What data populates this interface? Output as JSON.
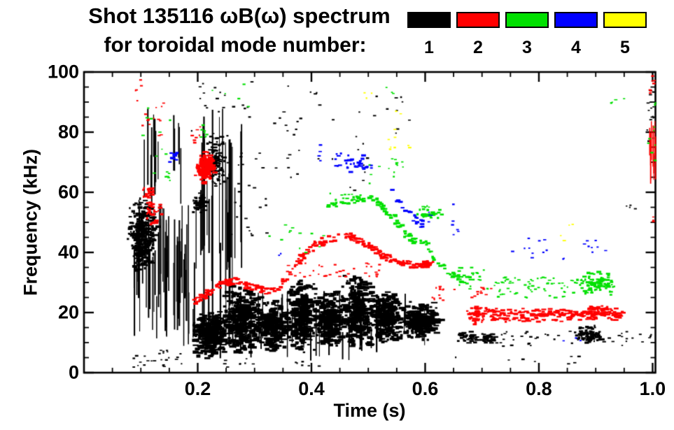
{
  "chart_data": {
    "type": "scatter",
    "subtype": "mode-spectrogram-scatter",
    "title_line1": "Shot 135116 ωB(ω) spectrum",
    "title_line2": "for toroidal mode number:",
    "xlabel": "Time (s)",
    "ylabel": "Frequency (kHz)",
    "xlim": [
      0,
      1.005
    ],
    "ylim": [
      0,
      100
    ],
    "xticks": [
      {
        "v": 0.2,
        "label": "0.2"
      },
      {
        "v": 0.4,
        "label": "0.4"
      },
      {
        "v": 0.6,
        "label": "0.6"
      },
      {
        "v": 0.8,
        "label": "0.8"
      },
      {
        "v": 1.0,
        "label": "1.0"
      }
    ],
    "yticks": [
      {
        "v": 0,
        "label": "0"
      },
      {
        "v": 20,
        "label": "20"
      },
      {
        "v": 40,
        "label": "40"
      },
      {
        "v": 60,
        "label": "60"
      },
      {
        "v": 80,
        "label": "80"
      },
      {
        "v": 100,
        "label": "100"
      }
    ],
    "minor_x_step": 0.05,
    "minor_y_step": 5,
    "grid": false,
    "legend_position": "top-right",
    "legend": {
      "items": [
        {
          "label": "1",
          "color": "#000000"
        },
        {
          "label": "2",
          "color": "#ff0000"
        },
        {
          "label": "3",
          "color": "#00e000"
        },
        {
          "label": "4",
          "color": "#0000ff"
        },
        {
          "label": "5",
          "color": "#ffff00"
        }
      ]
    },
    "mode_colors": {
      "1": "#000000",
      "2": "#ff0000",
      "3": "#00e000",
      "4": "#0000ff",
      "5": "#ffff00"
    },
    "seed": 7,
    "features": [
      {
        "mode": 1,
        "style": "blob",
        "t": [
          0.073,
          0.127
        ],
        "f": [
          34,
          59
        ],
        "n": 320,
        "dw": [
          2,
          8
        ],
        "dh": [
          2,
          4
        ]
      },
      {
        "mode": 1,
        "style": "vspikes",
        "t": [
          0.085,
          0.185
        ],
        "f": [
          8,
          58
        ],
        "n": 50
      },
      {
        "mode": 1,
        "style": "vspikes",
        "t": [
          0.1,
          0.175
        ],
        "f": [
          55,
          90
        ],
        "n": 14
      },
      {
        "mode": 1,
        "style": "specks",
        "t": [
          0.085,
          0.175
        ],
        "f": [
          2,
          8
        ],
        "n": 26
      },
      {
        "mode": 1,
        "style": "vspikes",
        "t": [
          0.19,
          0.28
        ],
        "f": [
          8,
          88
        ],
        "n": 26
      },
      {
        "mode": 1,
        "style": "blob",
        "t": [
          0.213,
          0.247
        ],
        "f": [
          61,
          80
        ],
        "n": 100
      },
      {
        "mode": 1,
        "style": "blob",
        "t": [
          0.188,
          0.215
        ],
        "f": [
          53,
          60
        ],
        "n": 50
      },
      {
        "mode": 1,
        "style": "specks",
        "t": [
          0.185,
          0.3
        ],
        "f": [
          78,
          98
        ],
        "n": 22
      },
      {
        "mode": 1,
        "style": "specks",
        "t": [
          0.25,
          0.32
        ],
        "f": [
          45,
          75
        ],
        "n": 26
      },
      {
        "mode": 1,
        "style": "blob",
        "t": [
          0.188,
          0.25
        ],
        "f": [
          5,
          22
        ],
        "n": 300,
        "dw": [
          3,
          10
        ],
        "dh": [
          2,
          5
        ]
      },
      {
        "mode": 1,
        "style": "blob",
        "t": [
          0.24,
          0.31
        ],
        "f": [
          6,
          30
        ],
        "n": 320,
        "dw": [
          3,
          10
        ],
        "dh": [
          2,
          5
        ]
      },
      {
        "mode": 1,
        "style": "blob",
        "t": [
          0.3,
          0.36
        ],
        "f": [
          7,
          25
        ],
        "n": 230,
        "dw": [
          3,
          10
        ],
        "dh": [
          2,
          5
        ]
      },
      {
        "mode": 1,
        "style": "blob",
        "t": [
          0.355,
          0.405
        ],
        "f": [
          7,
          32
        ],
        "n": 270,
        "dw": [
          3,
          10
        ],
        "dh": [
          2,
          5
        ]
      },
      {
        "mode": 1,
        "style": "blob",
        "t": [
          0.4,
          0.455
        ],
        "f": [
          8,
          28
        ],
        "n": 290,
        "dw": [
          3,
          10
        ],
        "dh": [
          2,
          5
        ]
      },
      {
        "mode": 1,
        "style": "blob",
        "t": [
          0.45,
          0.505
        ],
        "f": [
          8,
          33
        ],
        "n": 310,
        "dw": [
          3,
          10
        ],
        "dh": [
          2,
          5
        ]
      },
      {
        "mode": 1,
        "style": "blob",
        "t": [
          0.5,
          0.555
        ],
        "f": [
          10,
          28
        ],
        "n": 260,
        "dw": [
          3,
          10
        ],
        "dh": [
          2,
          5
        ]
      },
      {
        "mode": 1,
        "style": "blob",
        "t": [
          0.55,
          0.625
        ],
        "f": [
          11,
          24
        ],
        "n": 240,
        "dw": [
          3,
          10
        ],
        "dh": [
          2,
          5
        ]
      },
      {
        "mode": 1,
        "style": "vspikes",
        "t": [
          0.19,
          0.62
        ],
        "f": [
          4,
          28
        ],
        "n": 44
      },
      {
        "mode": 1,
        "style": "specks",
        "t": [
          0.33,
          0.5
        ],
        "f": [
          60,
          98
        ],
        "n": 34
      },
      {
        "mode": 1,
        "style": "specks",
        "t": [
          0.5,
          0.6
        ],
        "f": [
          75,
          96
        ],
        "n": 10
      },
      {
        "mode": 1,
        "style": "band",
        "t": [
          0.655,
          0.72
        ],
        "f": [
          10,
          14
        ],
        "n": 60
      },
      {
        "mode": 1,
        "style": "specks",
        "t": [
          0.72,
          0.86
        ],
        "f": [
          9,
          14
        ],
        "n": 26
      },
      {
        "mode": 1,
        "style": "blob",
        "t": [
          0.858,
          0.915
        ],
        "f": [
          10,
          16
        ],
        "n": 90
      },
      {
        "mode": 1,
        "style": "specks",
        "t": [
          0.92,
          0.965
        ],
        "f": [
          9,
          14
        ],
        "n": 10
      },
      {
        "mode": 1,
        "style": "specks",
        "t": [
          0.63,
          0.87
        ],
        "f": [
          3,
          6
        ],
        "n": 8
      },
      {
        "mode": 1,
        "style": "specks",
        "t": [
          0.985,
          1.002
        ],
        "f": [
          76,
          95
        ],
        "n": 14
      },
      {
        "mode": 1,
        "style": "specks",
        "t": [
          0.975,
          1.0
        ],
        "f": [
          10,
          14
        ],
        "n": 5
      },
      {
        "mode": 1,
        "style": "specks",
        "t": [
          0.95,
          0.97
        ],
        "f": [
          54,
          57
        ],
        "n": 4
      },
      {
        "mode": 1,
        "style": "specks",
        "t": [
          0.24,
          0.3
        ],
        "f": [
          2,
          5
        ],
        "n": 8
      },
      {
        "mode": 1,
        "style": "specks",
        "t": [
          0.37,
          0.42
        ],
        "f": [
          2,
          4
        ],
        "n": 6
      },
      {
        "mode": 2,
        "style": "specks",
        "t": [
          0.09,
          0.14
        ],
        "f": [
          78,
          91
        ],
        "n": 14
      },
      {
        "mode": 2,
        "style": "specks",
        "t": [
          0.088,
          0.1
        ],
        "f": [
          94,
          98
        ],
        "n": 4
      },
      {
        "mode": 2,
        "style": "blob",
        "t": [
          0.098,
          0.135
        ],
        "f": [
          49,
          58
        ],
        "n": 30
      },
      {
        "mode": 2,
        "style": "blob",
        "t": [
          0.1,
          0.125
        ],
        "f": [
          58,
          63
        ],
        "n": 24
      },
      {
        "mode": 2,
        "style": "blob",
        "t": [
          0.192,
          0.227
        ],
        "f": [
          63,
          74
        ],
        "n": 150,
        "dw": [
          3,
          9
        ],
        "dh": [
          2,
          4
        ]
      },
      {
        "mode": 2,
        "style": "specks",
        "t": [
          0.185,
          0.205
        ],
        "f": [
          76,
          82
        ],
        "n": 8
      },
      {
        "mode": 2,
        "style": "trace",
        "points": [
          [
            0.193,
            24
          ],
          [
            0.215,
            27
          ],
          [
            0.24,
            30
          ],
          [
            0.265,
            31
          ],
          [
            0.29,
            29
          ],
          [
            0.315,
            27
          ],
          [
            0.34,
            29
          ],
          [
            0.365,
            35
          ],
          [
            0.385,
            40
          ],
          [
            0.405,
            43
          ],
          [
            0.43,
            45
          ],
          [
            0.46,
            46
          ],
          [
            0.485,
            44
          ],
          [
            0.505,
            42
          ],
          [
            0.525,
            39
          ],
          [
            0.55,
            37
          ],
          [
            0.575,
            36
          ],
          [
            0.6,
            37
          ]
        ],
        "n": 260
      },
      {
        "mode": 2,
        "style": "specks",
        "t": [
          0.35,
          0.52
        ],
        "f": [
          32,
          37
        ],
        "n": 36
      },
      {
        "mode": 2,
        "style": "blob",
        "t": [
          0.585,
          0.615
        ],
        "f": [
          35,
          38
        ],
        "n": 34
      },
      {
        "mode": 2,
        "style": "specks",
        "t": [
          0.61,
          0.715
        ],
        "f": [
          24,
          29
        ],
        "n": 24
      },
      {
        "mode": 2,
        "style": "blob",
        "t": [
          0.665,
          0.715
        ],
        "f": [
          16,
          23
        ],
        "n": 55
      },
      {
        "mode": 2,
        "style": "band",
        "t": [
          0.71,
          0.945
        ],
        "f": [
          17,
          22
        ],
        "n": 200
      },
      {
        "mode": 2,
        "style": "blob",
        "t": [
          0.865,
          0.935
        ],
        "f": [
          19,
          23
        ],
        "n": 60
      },
      {
        "mode": 2,
        "style": "vspikes",
        "t": [
          0.993,
          1.004
        ],
        "f": [
          60,
          85
        ],
        "n": 10
      },
      {
        "mode": 2,
        "style": "specks",
        "t": [
          0.99,
          1.003
        ],
        "f": [
          92,
          99
        ],
        "n": 8
      },
      {
        "mode": 2,
        "style": "specks",
        "t": [
          0.995,
          1.003
        ],
        "f": [
          50,
          53
        ],
        "n": 3
      },
      {
        "mode": 3,
        "style": "specks",
        "t": [
          0.1,
          0.165
        ],
        "f": [
          60,
          96
        ],
        "n": 10
      },
      {
        "mode": 3,
        "style": "specks",
        "t": [
          0.135,
          0.15
        ],
        "f": [
          63,
          67
        ],
        "n": 6
      },
      {
        "mode": 3,
        "style": "specks",
        "t": [
          0.203,
          0.218
        ],
        "f": [
          78,
          83
        ],
        "n": 7
      },
      {
        "mode": 3,
        "style": "specks",
        "t": [
          0.2,
          0.3
        ],
        "f": [
          88,
          97
        ],
        "n": 5
      },
      {
        "mode": 3,
        "style": "specks",
        "t": [
          0.3,
          0.42
        ],
        "f": [
          40,
          50
        ],
        "n": 12
      },
      {
        "mode": 3,
        "style": "trace",
        "points": [
          [
            0.425,
            56
          ],
          [
            0.45,
            57
          ],
          [
            0.475,
            58
          ],
          [
            0.5,
            59
          ],
          [
            0.515,
            57
          ],
          [
            0.53,
            54
          ],
          [
            0.545,
            51
          ],
          [
            0.558,
            48
          ],
          [
            0.57,
            45
          ],
          [
            0.582,
            44
          ]
        ],
        "n": 80
      },
      {
        "mode": 3,
        "style": "blob",
        "t": [
          0.575,
          0.63
        ],
        "f": [
          51,
          55
        ],
        "n": 30
      },
      {
        "mode": 3,
        "style": "trace",
        "points": [
          [
            0.59,
            45
          ],
          [
            0.61,
            40
          ],
          [
            0.63,
            35
          ],
          [
            0.65,
            32
          ],
          [
            0.675,
            31
          ]
        ],
        "n": 40
      },
      {
        "mode": 3,
        "style": "specks",
        "t": [
          0.655,
          0.715
        ],
        "f": [
          27,
          36
        ],
        "n": 22
      },
      {
        "mode": 3,
        "style": "specks",
        "t": [
          0.72,
          0.86
        ],
        "f": [
          25,
          32
        ],
        "n": 70
      },
      {
        "mode": 3,
        "style": "blob",
        "t": [
          0.858,
          0.935
        ],
        "f": [
          26,
          34
        ],
        "n": 90
      },
      {
        "mode": 3,
        "style": "specks",
        "t": [
          0.5,
          0.56
        ],
        "f": [
          63,
          72
        ],
        "n": 14
      },
      {
        "mode": 3,
        "style": "specks",
        "t": [
          0.525,
          0.555
        ],
        "f": [
          92,
          96
        ],
        "n": 3
      },
      {
        "mode": 3,
        "style": "specks",
        "t": [
          0.925,
          0.95
        ],
        "f": [
          88,
          92
        ],
        "n": 4
      },
      {
        "mode": 3,
        "style": "specks",
        "t": [
          0.988,
          1.003
        ],
        "f": [
          70,
          92
        ],
        "n": 10
      },
      {
        "mode": 3,
        "style": "specks",
        "t": [
          0.593,
          0.605
        ],
        "f": [
          52,
          56
        ],
        "n": 4
      },
      {
        "mode": 3,
        "style": "specks",
        "t": [
          0.43,
          0.47
        ],
        "f": [
          56,
          60
        ],
        "n": 8
      },
      {
        "mode": 4,
        "style": "blob",
        "t": [
          0.146,
          0.163
        ],
        "f": [
          70,
          74
        ],
        "n": 10
      },
      {
        "mode": 4,
        "style": "blob",
        "t": [
          0.435,
          0.51
        ],
        "f": [
          67,
          74
        ],
        "n": 36
      },
      {
        "mode": 4,
        "style": "trace",
        "points": [
          [
            0.53,
            62
          ],
          [
            0.545,
            58
          ],
          [
            0.56,
            55
          ],
          [
            0.575,
            52
          ],
          [
            0.59,
            50
          ],
          [
            0.602,
            48
          ]
        ],
        "n": 22
      },
      {
        "mode": 4,
        "style": "specks",
        "t": [
          0.6,
          0.665
        ],
        "f": [
          46,
          57
        ],
        "n": 10
      },
      {
        "mode": 4,
        "style": "specks",
        "t": [
          0.74,
          0.845
        ],
        "f": [
          38,
          45
        ],
        "n": 12
      },
      {
        "mode": 4,
        "style": "specks",
        "t": [
          0.875,
          0.925
        ],
        "f": [
          40,
          45
        ],
        "n": 8
      },
      {
        "mode": 4,
        "style": "specks",
        "t": [
          0.84,
          0.88
        ],
        "f": [
          8,
          12
        ],
        "n": 3
      },
      {
        "mode": 4,
        "style": "specks",
        "t": [
          0.335,
          0.345
        ],
        "f": [
          39,
          41
        ],
        "n": 2
      },
      {
        "mode": 4,
        "style": "specks",
        "t": [
          0.41,
          0.43
        ],
        "f": [
          70,
          77
        ],
        "n": 4
      },
      {
        "mode": 5,
        "style": "specks",
        "t": [
          0.49,
          0.505
        ],
        "f": [
          91,
          94
        ],
        "n": 3
      },
      {
        "mode": 5,
        "style": "specks",
        "t": [
          0.52,
          0.545
        ],
        "f": [
          74,
          84
        ],
        "n": 6
      },
      {
        "mode": 5,
        "style": "specks",
        "t": [
          0.562,
          0.578
        ],
        "f": [
          74,
          77
        ],
        "n": 2
      },
      {
        "mode": 5,
        "style": "specks",
        "t": [
          0.832,
          0.848
        ],
        "f": [
          44,
          47
        ],
        "n": 2
      },
      {
        "mode": 5,
        "style": "specks",
        "t": [
          0.852,
          0.862
        ],
        "f": [
          49,
          51
        ],
        "n": 2
      },
      {
        "mode": 5,
        "style": "specks",
        "t": [
          0.545,
          0.56
        ],
        "f": [
          86,
          89
        ],
        "n": 2
      }
    ]
  }
}
